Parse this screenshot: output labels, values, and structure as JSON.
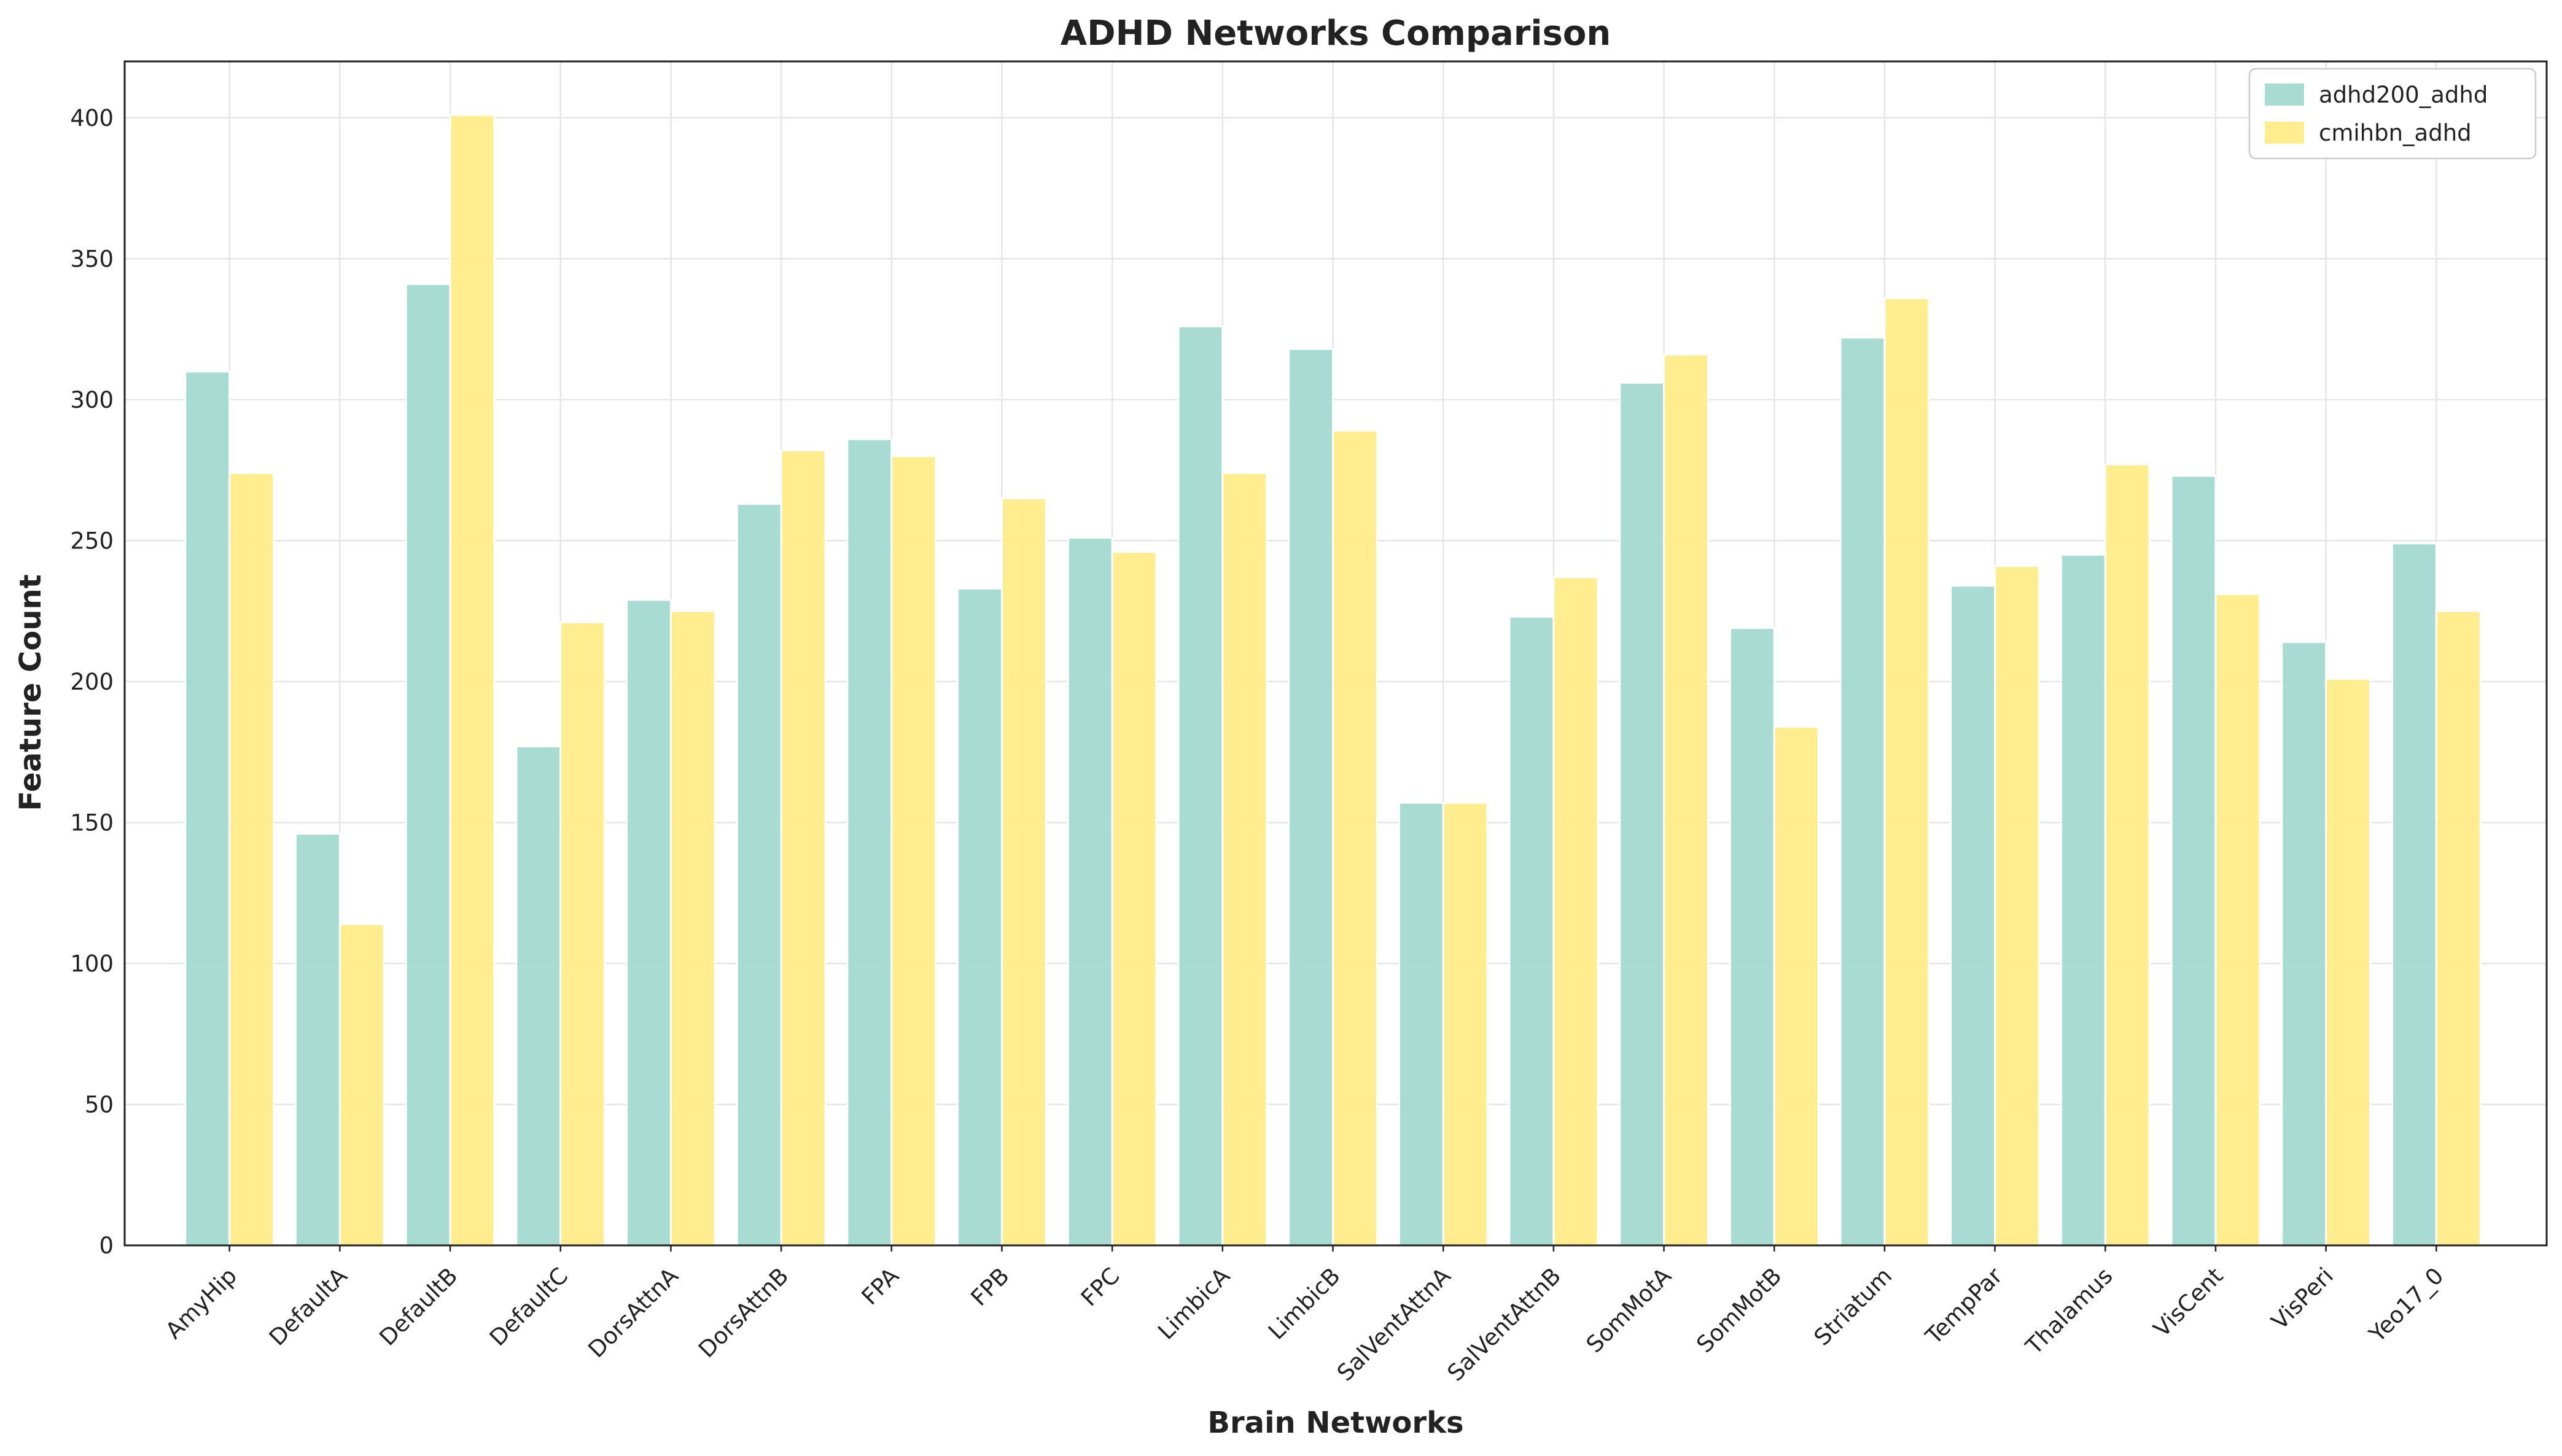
{
  "chart_data": {
    "type": "bar",
    "title": "ADHD Networks Comparison",
    "xlabel": "Brain Networks",
    "ylabel": "Feature Count",
    "ylim": [
      0,
      420
    ],
    "yticks": [
      0,
      50,
      100,
      150,
      200,
      250,
      300,
      350,
      400
    ],
    "grid": true,
    "legend_position": "top-right",
    "categories": [
      "AmyHip",
      "DefaultA",
      "DefaultB",
      "DefaultC",
      "DorsAttnA",
      "DorsAttnB",
      "FPA",
      "FPB",
      "FPC",
      "LimbicA",
      "LimbicB",
      "SalVentAttnA",
      "SalVentAttnB",
      "SomMotA",
      "SomMotB",
      "Striatum",
      "TempPar",
      "Thalamus",
      "VisCent",
      "VisPeri",
      "Yeo17_0"
    ],
    "series": [
      {
        "name": "adhd200_adhd",
        "color": "#a3d9d0",
        "values": [
          310,
          146,
          341,
          177,
          229,
          263,
          286,
          233,
          251,
          326,
          318,
          157,
          223,
          306,
          219,
          322,
          234,
          245,
          273,
          214,
          249
        ]
      },
      {
        "name": "cmihbn_adhd",
        "color": "#ffec8a",
        "values": [
          274,
          114,
          401,
          221,
          225,
          282,
          280,
          265,
          246,
          274,
          289,
          157,
          237,
          316,
          184,
          336,
          241,
          277,
          231,
          201,
          225
        ]
      }
    ]
  }
}
